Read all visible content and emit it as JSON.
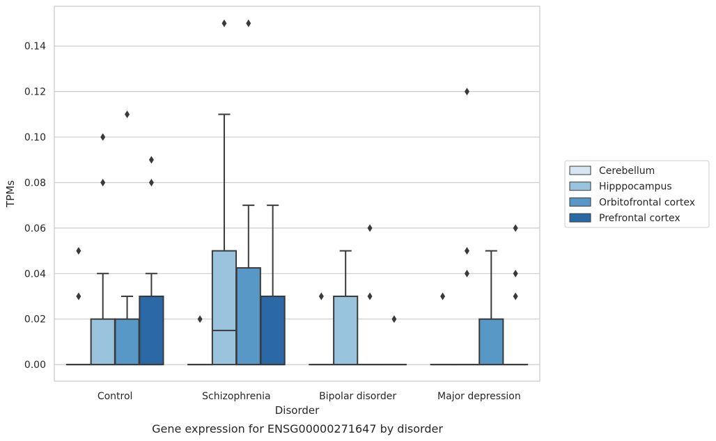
{
  "chart_data": {
    "type": "boxplot",
    "title": "",
    "caption": "Gene expression for ENSG00000271647 by disorder",
    "xlabel": "Disorder",
    "ylabel": "TPMs",
    "ylim": [
      -0.0073,
      0.1575
    ],
    "yticks": [
      0.0,
      0.02,
      0.04,
      0.06,
      0.08,
      0.1,
      0.12,
      0.14
    ],
    "ytick_labels": [
      "0.00",
      "0.02",
      "0.04",
      "0.06",
      "0.08",
      "0.10",
      "0.12",
      "0.14"
    ],
    "grid": true,
    "legend_position": "right",
    "categories": [
      "Control",
      "Schizophrenia",
      "Bipolar disorder",
      "Major depression"
    ],
    "series": [
      {
        "name": "Cerebellum",
        "color": "#d7e6f4",
        "boxes": [
          {
            "q1": 0,
            "median": 0,
            "q3": 0,
            "whislo": 0,
            "whishi": 0,
            "fliers": [
              0.03,
              0.05
            ]
          },
          {
            "q1": 0,
            "median": 0,
            "q3": 0,
            "whislo": 0,
            "whishi": 0,
            "fliers": [
              0.02
            ]
          },
          {
            "q1": 0,
            "median": 0,
            "q3": 0,
            "whislo": 0,
            "whishi": 0,
            "fliers": [
              0.03
            ]
          },
          {
            "q1": 0,
            "median": 0,
            "q3": 0,
            "whislo": 0,
            "whishi": 0,
            "fliers": [
              0.03
            ]
          }
        ]
      },
      {
        "name": "Hipppocampus",
        "color": "#9ac4de",
        "boxes": [
          {
            "q1": 0,
            "median": 0,
            "q3": 0.02,
            "whislo": 0,
            "whishi": 0.04,
            "fliers": [
              0.08,
              0.1
            ]
          },
          {
            "q1": 0,
            "median": 0.015,
            "q3": 0.05,
            "whislo": 0,
            "whishi": 0.11,
            "fliers": [
              0.15
            ]
          },
          {
            "q1": 0,
            "median": 0,
            "q3": 0.03,
            "whislo": 0,
            "whishi": 0.05,
            "fliers": []
          },
          {
            "q1": 0,
            "median": 0,
            "q3": 0,
            "whislo": 0,
            "whishi": 0,
            "fliers": [
              0.04,
              0.05,
              0.12
            ]
          }
        ]
      },
      {
        "name": "Orbitofrontal cortex",
        "color": "#5898c7",
        "boxes": [
          {
            "q1": 0,
            "median": 0,
            "q3": 0.02,
            "whislo": 0,
            "whishi": 0.03,
            "fliers": [
              0.11
            ]
          },
          {
            "q1": 0,
            "median": 0,
            "q3": 0.0425,
            "whislo": 0,
            "whishi": 0.07,
            "fliers": [
              0.15
            ]
          },
          {
            "q1": 0,
            "median": 0,
            "q3": 0,
            "whislo": 0,
            "whishi": 0,
            "fliers": [
              0.03,
              0.06
            ]
          },
          {
            "q1": 0,
            "median": 0,
            "q3": 0.02,
            "whislo": 0,
            "whishi": 0.05,
            "fliers": []
          }
        ]
      },
      {
        "name": "Prefrontal cortex",
        "color": "#2b68a6",
        "boxes": [
          {
            "q1": 0,
            "median": 0,
            "q3": 0.03,
            "whislo": 0,
            "whishi": 0.04,
            "fliers": [
              0.08,
              0.09
            ]
          },
          {
            "q1": 0,
            "median": 0,
            "q3": 0.03,
            "whislo": 0,
            "whishi": 0.07,
            "fliers": []
          },
          {
            "q1": 0,
            "median": 0,
            "q3": 0,
            "whislo": 0,
            "whishi": 0,
            "fliers": [
              0.02
            ]
          },
          {
            "q1": 0,
            "median": 0,
            "q3": 0,
            "whislo": 0,
            "whishi": 0,
            "fliers": [
              0.03,
              0.04,
              0.06
            ]
          }
        ]
      }
    ]
  }
}
